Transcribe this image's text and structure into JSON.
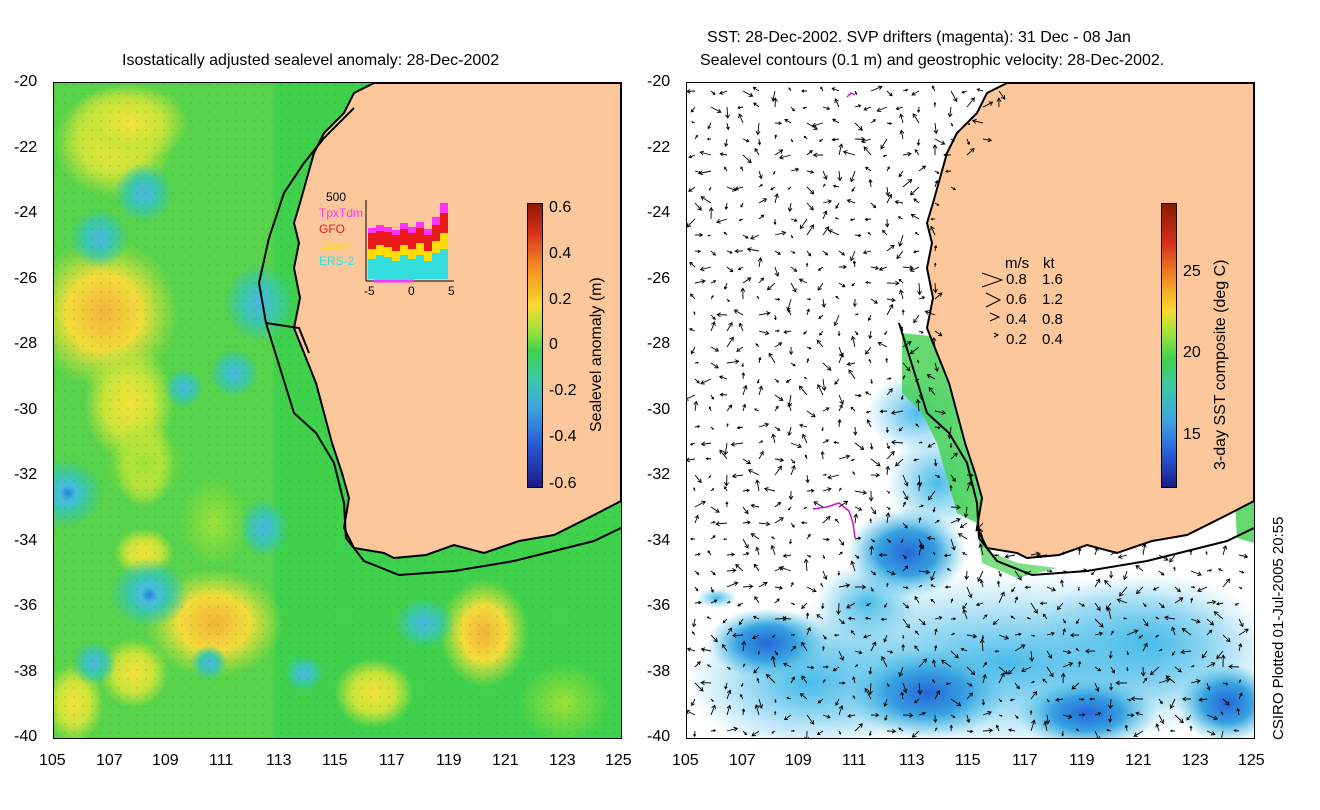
{
  "left_panel": {
    "title": "Isostatically adjusted sealevel anomaly: 28-Dec-2002",
    "lat_ticks": [
      "-20",
      "-22",
      "-24",
      "-26",
      "-28",
      "-30",
      "-32",
      "-34",
      "-36",
      "-38",
      "-40"
    ],
    "lon_ticks": [
      "105",
      "107",
      "109",
      "111",
      "113",
      "115",
      "117",
      "119",
      "121",
      "123",
      "125"
    ],
    "colorbar": {
      "label": "Sealevel anomaly (m)",
      "ticks": [
        "0.6",
        "0.4",
        "0.2",
        "0",
        "-0.2",
        "-0.4",
        "-0.6"
      ]
    },
    "inset": {
      "ymax_label": "500",
      "x_ticks": [
        "-5",
        "0",
        "5"
      ],
      "legend": [
        {
          "name": "TpxTdm",
          "color": "#ff33ff"
        },
        {
          "name": "GFO",
          "color": "#e81a1a"
        },
        {
          "name": "Jason",
          "color": "#ffdd00"
        },
        {
          "name": "ERS-2",
          "color": "#33dddd"
        }
      ]
    }
  },
  "right_panel": {
    "title_line1": "SST: 28-Dec-2002. SVP drifters (magenta): 31 Dec - 08 Jan",
    "title_line2": "Sealevel contours (0.1 m) and geostrophic velocity: 28-Dec-2002.",
    "lat_ticks": [
      "-20",
      "-22",
      "-24",
      "-26",
      "-28",
      "-30",
      "-32",
      "-34",
      "-36",
      "-38",
      "-40"
    ],
    "lon_ticks": [
      "105",
      "107",
      "109",
      "111",
      "113",
      "115",
      "117",
      "119",
      "121",
      "123",
      "125"
    ],
    "colorbar": {
      "label": "3-day SST composite (deg C)",
      "ticks": [
        "25",
        "20",
        "15"
      ]
    },
    "speed_legend": {
      "header_ms": "m/s",
      "header_kt": "kt",
      "rows": [
        {
          "ms": "0.8",
          "kt": "1.6"
        },
        {
          "ms": "0.6",
          "kt": "1.2"
        },
        {
          "ms": "0.4",
          "kt": "0.8"
        },
        {
          "ms": "0.2",
          "kt": "0.4"
        }
      ]
    }
  },
  "credit": "CSIRO Plotted 01-Jul-2005 20:55",
  "colors": {
    "land": "#fcc89b",
    "ocean_base": "#3ecf4a",
    "coast": "#000000"
  }
}
